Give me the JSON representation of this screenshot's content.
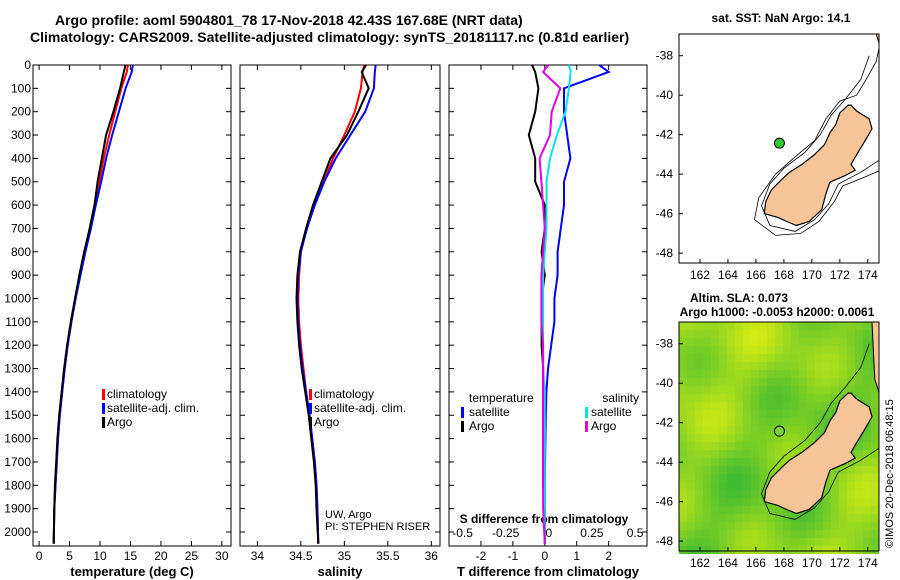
{
  "header": {
    "line1": "Argo profile: aoml 5904801_78 17-Nov-2018 42.43S 167.68E (NRT data)",
    "line2": "Climatology: CARS2009. Satellite-adjusted climatology: synTS_20181117.nc (0.81d earlier)"
  },
  "colors": {
    "climatology": "#ff0000",
    "satellite": "#0000ff",
    "argo": "#000000",
    "sat_salinity": "#00e5e5",
    "argo_salinity": "#e000e0",
    "land": "#f7c497"
  },
  "credits": {
    "uw_argo": "UW, Argo",
    "pi": "PI: STEPHEN RISER",
    "imos": "©IMOS 20-Dec-2018 06:48:15"
  },
  "chart_data": [
    {
      "id": "temperature",
      "type": "line",
      "xlabel": "temperature (deg C)",
      "ylabel": "",
      "xlim": [
        -1,
        31.5
      ],
      "ylim": [
        2060,
        0
      ],
      "xticks": [
        0,
        5,
        10,
        15,
        20,
        25,
        30
      ],
      "xtick_labels": [
        "0",
        "5",
        "10",
        "15",
        "20",
        "25",
        "30"
      ],
      "yticks": [
        0,
        100,
        200,
        300,
        400,
        500,
        600,
        700,
        800,
        900,
        1000,
        1100,
        1200,
        1300,
        1400,
        1500,
        1600,
        1700,
        1800,
        1900,
        2000
      ],
      "ytick_labels": [
        "0",
        "100",
        "200",
        "300",
        "400",
        "500",
        "600",
        "700",
        "800",
        "900",
        "1000",
        "1100",
        "1200",
        "1300",
        "1400",
        "1500",
        "1600",
        "1700",
        "1800",
        "1900",
        "2000"
      ],
      "legend": [
        "climatology",
        "satellite-adj. clim.",
        "Argo"
      ],
      "series": [
        {
          "name": "climatology",
          "color": "#ff0000",
          "x": [
            14.6,
            14.4,
            13.5,
            12.5,
            11.5,
            10.6,
            9.9,
            9.1,
            8.3,
            7.5,
            6.7,
            6.0,
            5.3,
            4.7,
            4.2,
            3.8,
            3.4,
            3.1,
            2.9,
            2.7,
            2.5,
            2.4
          ],
          "y": [
            0,
            30,
            100,
            200,
            300,
            400,
            500,
            600,
            700,
            800,
            900,
            1000,
            1100,
            1200,
            1300,
            1400,
            1500,
            1600,
            1700,
            1800,
            1900,
            2050
          ]
        },
        {
          "name": "satellite-adj. clim.",
          "color": "#0000ff",
          "x": [
            15.4,
            15.2,
            14.2,
            13.1,
            12.0,
            11.0,
            10.2,
            9.3,
            8.5,
            7.6,
            6.8,
            6.0,
            5.3,
            4.7,
            4.2,
            3.8,
            3.4,
            3.1,
            2.9,
            2.7,
            2.5,
            2.4
          ],
          "y": [
            0,
            30,
            100,
            200,
            300,
            400,
            500,
            600,
            700,
            800,
            900,
            1000,
            1100,
            1200,
            1300,
            1400,
            1500,
            1600,
            1700,
            1800,
            1900,
            2050
          ]
        },
        {
          "name": "Argo",
          "color": "#000000",
          "x": [
            14.2,
            13.9,
            13.3,
            12.2,
            11.0,
            10.3,
            9.6,
            9.1,
            8.3,
            7.4,
            6.6,
            5.9,
            5.2,
            4.6,
            4.1,
            3.7,
            3.3,
            3.0,
            2.8,
            2.6,
            2.5,
            2.4
          ],
          "y": [
            0,
            30,
            100,
            200,
            300,
            400,
            500,
            600,
            700,
            800,
            900,
            1000,
            1100,
            1200,
            1300,
            1400,
            1500,
            1600,
            1700,
            1800,
            1900,
            2050
          ]
        }
      ]
    },
    {
      "id": "salinity",
      "type": "line",
      "xlabel": "salinity",
      "ylabel": "",
      "xlim": [
        33.8,
        36.1
      ],
      "ylim": [
        2060,
        0
      ],
      "xticks": [
        34,
        34.5,
        35,
        35.5,
        36
      ],
      "xtick_labels": [
        "34",
        "34.5",
        "35",
        "35.5",
        "36"
      ],
      "yticks": [
        0,
        100,
        200,
        300,
        400,
        500,
        600,
        700,
        800,
        900,
        1000,
        1100,
        1200,
        1300,
        1400,
        1500,
        1600,
        1700,
        1800,
        1900,
        2000
      ],
      "legend": [
        "climatology",
        "satellite-adj. clim.",
        "Argo"
      ],
      "series": [
        {
          "name": "climatology",
          "color": "#ff0000",
          "x": [
            35.23,
            35.21,
            35.19,
            35.12,
            35.0,
            34.87,
            34.76,
            34.65,
            34.56,
            34.5,
            34.48,
            34.47,
            34.48,
            34.5,
            34.53,
            34.56,
            34.6,
            34.63,
            34.66,
            34.68,
            34.69,
            34.7
          ],
          "y": [
            0,
            30,
            100,
            200,
            300,
            400,
            500,
            600,
            700,
            800,
            900,
            1000,
            1100,
            1200,
            1300,
            1400,
            1500,
            1600,
            1700,
            1800,
            1900,
            2050
          ]
        },
        {
          "name": "satellite-adj. clim.",
          "color": "#0000ff",
          "x": [
            35.36,
            35.35,
            35.34,
            35.24,
            35.07,
            34.9,
            34.77,
            34.66,
            34.57,
            34.5,
            34.47,
            34.46,
            34.47,
            34.49,
            34.52,
            34.56,
            34.6,
            34.63,
            34.66,
            34.68,
            34.69,
            34.7
          ],
          "y": [
            0,
            30,
            100,
            200,
            300,
            400,
            500,
            600,
            700,
            800,
            900,
            1000,
            1100,
            1200,
            1300,
            1400,
            1500,
            1600,
            1700,
            1800,
            1900,
            2050
          ]
        },
        {
          "name": "Argo",
          "color": "#000000",
          "x": [
            35.25,
            35.2,
            35.28,
            35.16,
            35.03,
            34.84,
            34.74,
            34.64,
            34.56,
            34.49,
            34.46,
            34.45,
            34.46,
            34.48,
            34.51,
            34.55,
            34.59,
            34.62,
            34.65,
            34.67,
            34.68,
            34.7
          ],
          "y": [
            0,
            30,
            100,
            200,
            300,
            400,
            500,
            600,
            700,
            800,
            900,
            1000,
            1100,
            1200,
            1300,
            1400,
            1500,
            1600,
            1700,
            1800,
            1900,
            2050
          ]
        }
      ]
    },
    {
      "id": "difference",
      "type": "line",
      "xlabel": "T difference from climatology",
      "xlabel2": "S difference from climatology",
      "xlim": [
        -3,
        3.2
      ],
      "ylim": [
        2060,
        0
      ],
      "xticks": [
        -2,
        -1,
        0,
        1,
        2
      ],
      "xtick_labels": [
        "-2",
        "-1",
        "0",
        "1",
        "2"
      ],
      "xticks2": [
        -0.5,
        -0.25,
        0,
        0.25,
        0.5
      ],
      "xtick2_labels": [
        "-0.5",
        "-0.25",
        "0",
        "0.25",
        "0.5"
      ],
      "yticks": [
        0,
        100,
        200,
        300,
        400,
        500,
        600,
        700,
        800,
        900,
        1000,
        1100,
        1200,
        1300,
        1400,
        1500,
        1600,
        1700,
        1800,
        1900,
        2000
      ],
      "legend_left_title": "temperature",
      "legend_left": [
        "satellite",
        "Argo"
      ],
      "legend_right_title": "salinity",
      "legend_right": [
        "satellite",
        "Argo"
      ],
      "series": [
        {
          "name": "T satellite",
          "color": "#0000ff",
          "x": [
            1.7,
            2.0,
            0.6,
            0.6,
            0.7,
            0.8,
            0.6,
            0.6,
            0.5,
            0.4,
            0.4,
            0.3,
            0.3,
            0.2,
            0.1,
            0.05,
            0.03,
            0.02,
            0.01,
            0.0,
            0.0,
            0.0
          ],
          "y": [
            0,
            30,
            100,
            200,
            300,
            400,
            500,
            600,
            700,
            800,
            900,
            1000,
            1100,
            1200,
            1300,
            1400,
            1500,
            1600,
            1700,
            1800,
            1900,
            2050
          ]
        },
        {
          "name": "T Argo",
          "color": "#000000",
          "x": [
            -0.4,
            -0.3,
            -0.2,
            -0.3,
            -0.5,
            -0.3,
            -0.3,
            0.0,
            0.0,
            -0.1,
            0.0,
            -0.1,
            -0.1,
            -0.1,
            -0.05,
            -0.05,
            -0.05,
            -0.05,
            -0.05,
            -0.05,
            0.0,
            0.0
          ],
          "y": [
            0,
            30,
            100,
            200,
            300,
            400,
            500,
            600,
            700,
            800,
            900,
            1000,
            1100,
            1200,
            1300,
            1400,
            1500,
            1600,
            1700,
            1800,
            1900,
            2050
          ]
        },
        {
          "name": "S satellite",
          "color": "#00e5e5",
          "x": [
            0.14,
            0.15,
            0.14,
            0.12,
            0.07,
            0.03,
            0.01,
            0.01,
            0.01,
            0.0,
            -0.01,
            -0.01,
            -0.01,
            -0.01,
            -0.01,
            0.0,
            0.0,
            0.0,
            0.0,
            0.0,
            0.0,
            0.0
          ],
          "y": [
            0,
            30,
            100,
            200,
            300,
            400,
            500,
            600,
            700,
            800,
            900,
            1000,
            1100,
            1200,
            1300,
            1400,
            1500,
            1600,
            1700,
            1800,
            1900,
            2050
          ]
        },
        {
          "name": "S Argo",
          "color": "#e000e0",
          "x": [
            0.02,
            -0.01,
            0.09,
            0.04,
            0.03,
            -0.03,
            -0.02,
            -0.01,
            0.0,
            -0.01,
            -0.02,
            -0.02,
            -0.02,
            -0.01,
            -0.01,
            -0.01,
            -0.01,
            -0.01,
            -0.01,
            -0.01,
            -0.01,
            0.0
          ],
          "y": [
            0,
            30,
            100,
            200,
            300,
            400,
            500,
            600,
            700,
            800,
            900,
            1000,
            1100,
            1200,
            1300,
            1400,
            1500,
            1600,
            1700,
            1800,
            1900,
            2050
          ]
        }
      ]
    },
    {
      "id": "map_sst",
      "type": "map",
      "title": "sat. SST: NaN Argo: 14.1",
      "xlim": [
        160.5,
        174.8
      ],
      "ylim": [
        -48.5,
        -36.9
      ],
      "xticks": [
        162,
        164,
        166,
        168,
        170,
        172,
        174
      ],
      "xtick_labels": [
        "162",
        "164",
        "166",
        "168",
        "170",
        "172",
        "174"
      ],
      "yticks": [
        -38,
        -40,
        -42,
        -44,
        -46,
        -48
      ],
      "ytick_labels": [
        "-38",
        "-40",
        "-42",
        "-44",
        "-46",
        "-48"
      ],
      "float_position": {
        "lon": 167.68,
        "lat": -42.43
      }
    },
    {
      "id": "map_sla",
      "type": "map",
      "title": "Altim. SLA: 0.073",
      "subtitle": "Argo h1000: -0.0053 h2000: 0.0061",
      "xlim": [
        160.5,
        174.8
      ],
      "ylim": [
        -48.5,
        -36.9
      ],
      "xticks": [
        162,
        164,
        166,
        168,
        170,
        172,
        174
      ],
      "xtick_labels": [
        "162",
        "164",
        "166",
        "168",
        "170",
        "172",
        "174"
      ],
      "yticks": [
        -38,
        -40,
        -42,
        -44,
        -46,
        -48
      ],
      "ytick_labels": [
        "-38",
        "-40",
        "-42",
        "-44",
        "-46",
        "-48"
      ],
      "float_position": {
        "lon": 167.68,
        "lat": -42.43
      }
    }
  ]
}
